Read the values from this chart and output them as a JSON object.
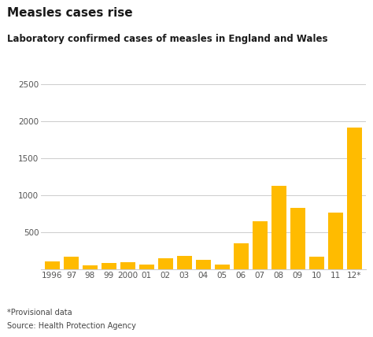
{
  "title": "Measles cases rise",
  "subtitle": "Laboratory confirmed cases of measles in England and Wales",
  "categories": [
    "1996",
    "97",
    "98",
    "99",
    "2000",
    "01",
    "02",
    "03",
    "04",
    "05",
    "06",
    "07",
    "08",
    "09",
    "10",
    "11",
    "12*"
  ],
  "values": [
    112,
    170,
    56,
    94,
    96,
    70,
    155,
    190,
    130,
    70,
    360,
    650,
    1130,
    830,
    170,
    770,
    1920
  ],
  "bar_color": "#FFBB00",
  "ylim": [
    0,
    2500
  ],
  "yticks": [
    500,
    1000,
    1500,
    2000,
    2500
  ],
  "background_color": "#ffffff",
  "title_fontsize": 11,
  "subtitle_fontsize": 8.5,
  "footnote1": "*Provisional data",
  "footnote2": "Source: Health Protection Agency",
  "grid_color": "#cccccc",
  "tick_color": "#555555",
  "tick_fontsize": 7.5
}
